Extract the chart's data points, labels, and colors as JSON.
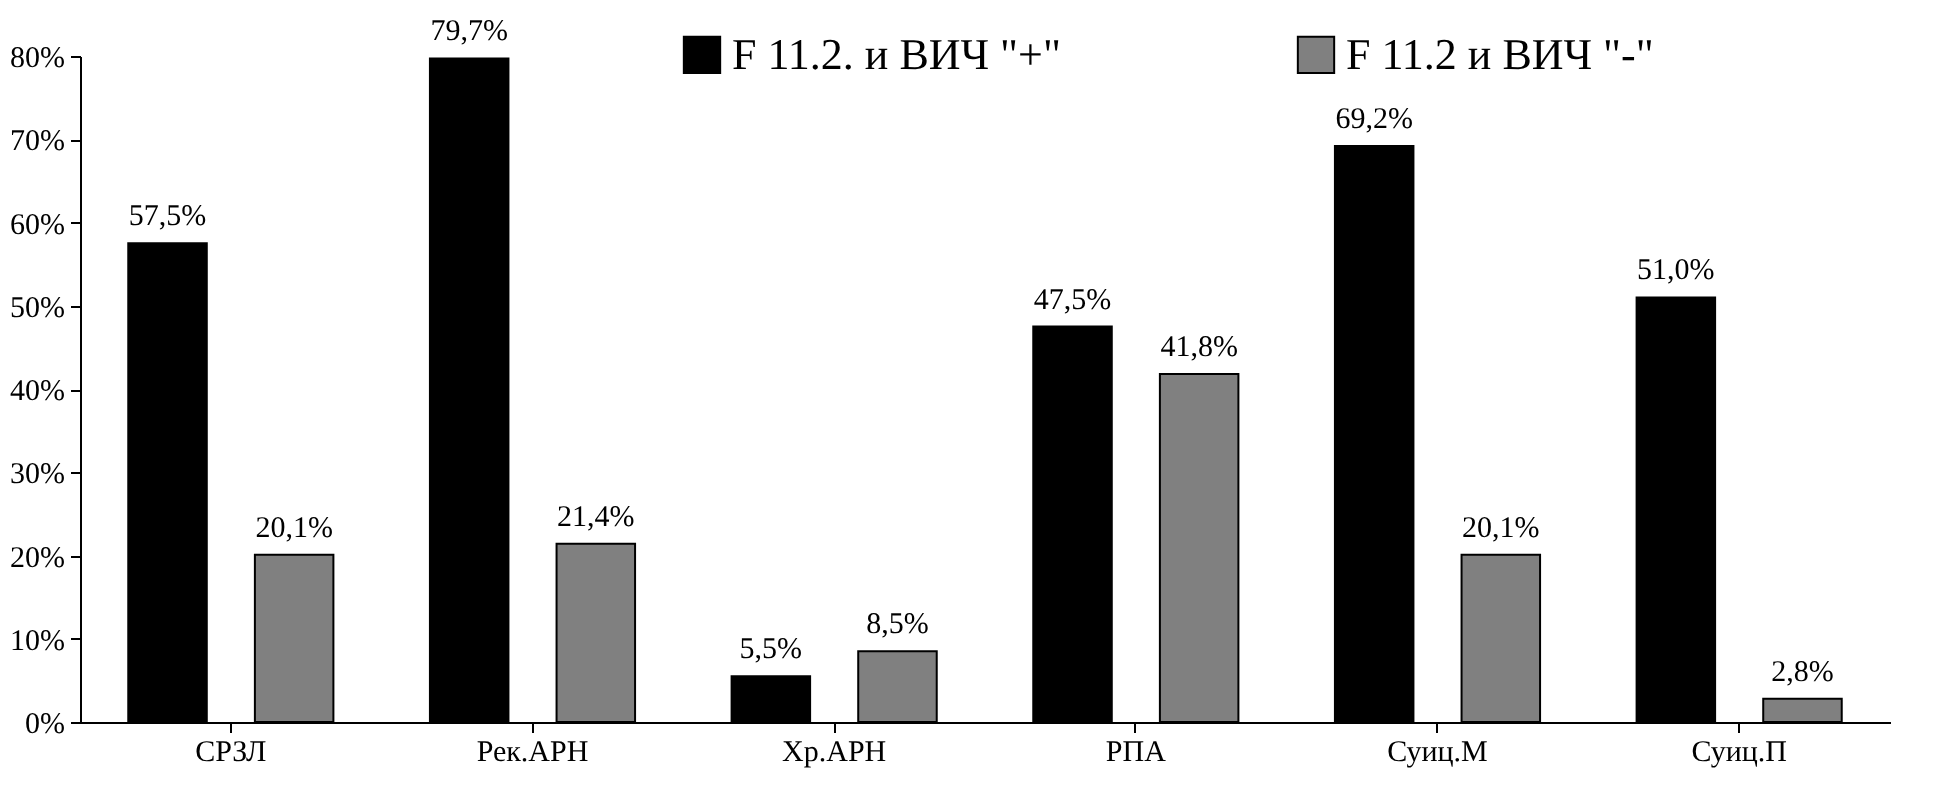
{
  "chart_data": {
    "type": "bar",
    "categories": [
      "СРЗЛ",
      "Рек.АРН",
      "Хр.АРН",
      "РПА",
      "Суиц.М",
      "Суиц.П"
    ],
    "series": [
      {
        "name": "F 11.2. и ВИЧ \"+\"",
        "color": "#000000",
        "values": [
          57.5,
          79.7,
          5.5,
          47.5,
          69.2,
          51.0
        ],
        "value_labels": [
          "57,5%",
          "79,7%",
          "5,5%",
          "47,5%",
          "69,2%",
          "51,0%"
        ]
      },
      {
        "name": "F 11.2 и ВИЧ \"-\"",
        "color": "#808080",
        "values": [
          20.1,
          21.4,
          8.5,
          41.8,
          20.1,
          2.8
        ],
        "value_labels": [
          "20,1%",
          "21,4%",
          "8,5%",
          "41,8%",
          "20,1%",
          "2,8%"
        ]
      }
    ],
    "ylim": [
      0,
      80
    ],
    "yticks": [
      {
        "value": 0,
        "label": "0%"
      },
      {
        "value": 10,
        "label": "10%"
      },
      {
        "value": 20,
        "label": "20%"
      },
      {
        "value": 30,
        "label": "30%"
      },
      {
        "value": 40,
        "label": "40%"
      },
      {
        "value": 50,
        "label": "50%"
      },
      {
        "value": 60,
        "label": "60%"
      },
      {
        "value": 70,
        "label": "70%"
      },
      {
        "value": 80,
        "label": "80%"
      }
    ],
    "legend": "top",
    "grid": false
  }
}
